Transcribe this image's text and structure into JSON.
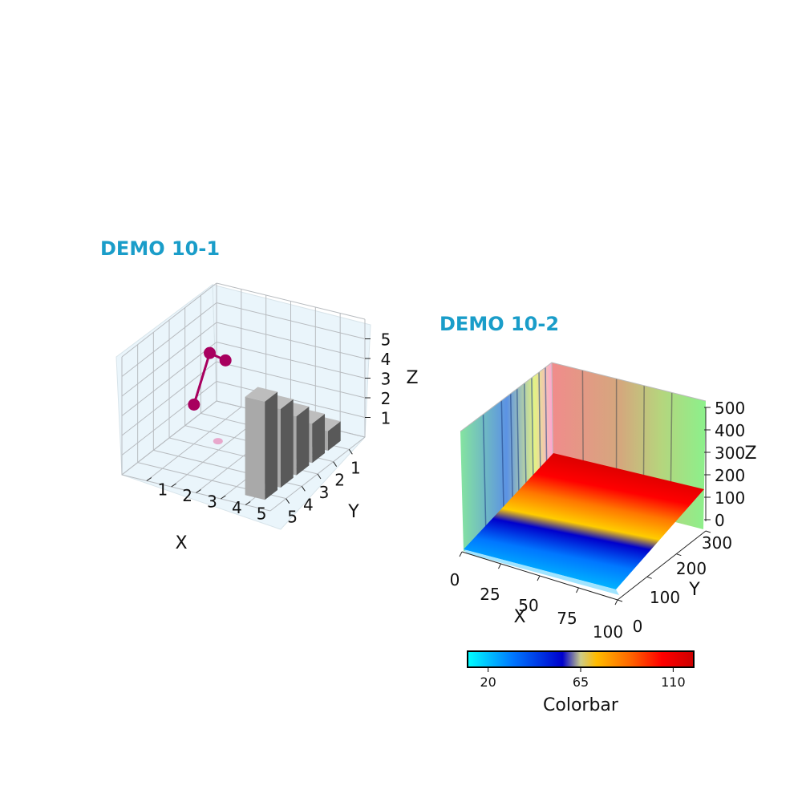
{
  "colors": {
    "title": "#1a9dc9",
    "pane": "#eaf5fb",
    "grid": "#b8bcc0",
    "line_marker": "#a8005f",
    "bar_top": "#bdbdbd",
    "bar_front": "#a9a9a9",
    "bar_side": "#595959",
    "wall_back": "#f08080",
    "wall_left": "#7fe07f"
  },
  "chart_data": [
    {
      "type": "3d-bar-and-line",
      "title": "DEMO 10-1",
      "xlabel": "X",
      "ylabel": "Y",
      "zlabel": "Z",
      "xticks": [
        "1",
        "2",
        "3",
        "4",
        "5"
      ],
      "yticks": [
        "1",
        "2",
        "3",
        "4",
        "5"
      ],
      "zticks": [
        "1",
        "2",
        "3",
        "4",
        "5"
      ],
      "xlim": [
        0,
        6
      ],
      "ylim": [
        0,
        6
      ],
      "zlim": [
        0,
        6
      ],
      "bars": [
        {
          "x": 1,
          "y": 5,
          "z": 1
        },
        {
          "x": 2,
          "y": 5,
          "z": 2
        },
        {
          "x": 3,
          "y": 5,
          "z": 3
        },
        {
          "x": 4,
          "y": 5,
          "z": 4
        },
        {
          "x": 5,
          "y": 5,
          "z": 5
        }
      ],
      "line": [
        {
          "x": 1,
          "y": 1,
          "z": 3
        },
        {
          "x": 2,
          "y": 1,
          "z": 4
        },
        {
          "x": 3,
          "y": 1,
          "z": 2
        }
      ]
    },
    {
      "type": "3d-surface",
      "title": "DEMO 10-2",
      "xlabel": "X",
      "ylabel": "Y",
      "zlabel": "Z",
      "xticks": [
        "0",
        "25",
        "50",
        "75",
        "100"
      ],
      "yticks": [
        "0",
        "100",
        "200",
        "300"
      ],
      "zticks": [
        "0",
        "100",
        "200",
        "300",
        "400",
        "500"
      ],
      "xlim": [
        0,
        100
      ],
      "ylim": [
        0,
        300
      ],
      "zlim": [
        0,
        500
      ],
      "colorbar": {
        "label": "Colorbar",
        "ticks": [
          "20",
          "65",
          "110"
        ],
        "range": [
          10,
          120
        ],
        "colors": [
          "#00ffff",
          "#0066ff",
          "#0000cc",
          "#ffcc00",
          "#ff6600",
          "#ff0000",
          "#cc0000"
        ]
      }
    }
  ]
}
